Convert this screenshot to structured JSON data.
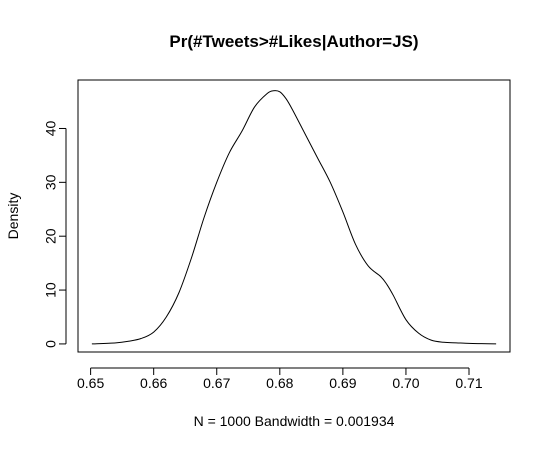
{
  "chart_data": {
    "type": "line",
    "title": "Pr(#Tweets>#Likes|Author=JS)",
    "xlabel": "N = 1000   Bandwidth = 0.001934",
    "ylabel": "Density",
    "xlim": [
      0.648,
      0.7165
    ],
    "ylim": [
      -1.5,
      49
    ],
    "x_ticks": [
      0.65,
      0.66,
      0.67,
      0.68,
      0.69,
      0.7,
      0.71
    ],
    "x_tick_labels": [
      "0.65",
      "0.66",
      "0.67",
      "0.68",
      "0.69",
      "0.70",
      "0.71"
    ],
    "y_ticks": [
      0,
      10,
      20,
      30,
      40
    ],
    "y_tick_labels": [
      "0",
      "10",
      "20",
      "30",
      "40"
    ],
    "grid": false,
    "series": [
      {
        "name": "density",
        "x": [
          0.6502,
          0.654,
          0.656,
          0.658,
          0.66,
          0.662,
          0.664,
          0.666,
          0.668,
          0.67,
          0.672,
          0.674,
          0.676,
          0.678,
          0.679,
          0.68,
          0.681,
          0.682,
          0.684,
          0.686,
          0.688,
          0.69,
          0.692,
          0.694,
          0.696,
          0.697,
          0.698,
          0.7,
          0.702,
          0.704,
          0.706,
          0.708,
          0.71,
          0.712,
          0.7143
        ],
        "y": [
          0.0,
          0.2,
          0.5,
          1.0,
          2.2,
          5.0,
          9.5,
          16.0,
          23.5,
          30.0,
          35.5,
          39.5,
          44.0,
          46.5,
          47.0,
          46.8,
          45.5,
          43.5,
          39.0,
          34.5,
          30.0,
          24.5,
          18.5,
          14.5,
          12.5,
          11.0,
          9.0,
          4.5,
          2.0,
          0.7,
          0.3,
          0.2,
          0.1,
          0.05,
          0.0
        ]
      }
    ]
  }
}
